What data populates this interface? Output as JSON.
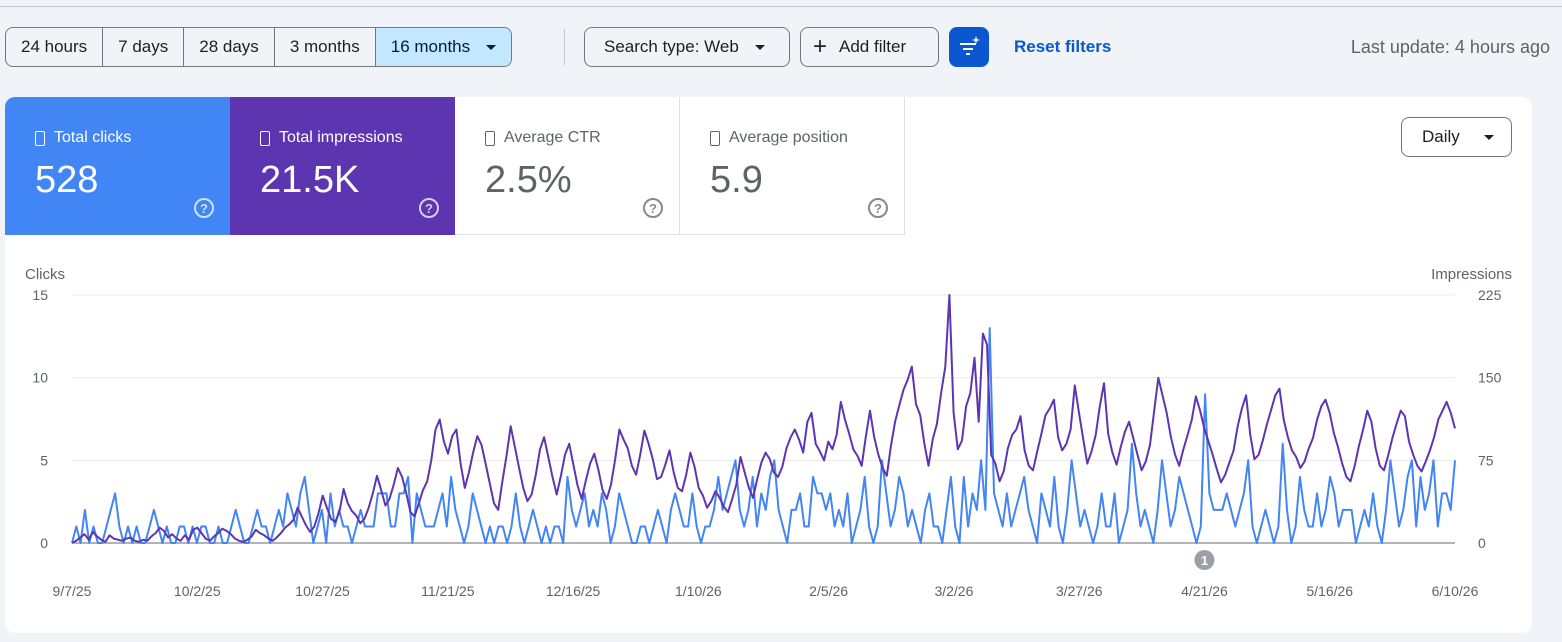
{
  "time_range": {
    "options": [
      "24 hours",
      "7 days",
      "28 days",
      "3 months",
      "16 months"
    ],
    "selected": "16 months"
  },
  "filters": {
    "search_type_label": "Search type: Web",
    "add_filter_label": "Add filter",
    "reset_label": "Reset filters"
  },
  "last_update": "Last update: 4 hours ago",
  "metrics": {
    "clicks": {
      "label": "Total clicks",
      "value": "528",
      "help": "?"
    },
    "impressions": {
      "label": "Total impressions",
      "value": "21.5K",
      "help": "?"
    },
    "ctr": {
      "label": "Average CTR",
      "value": "2.5%",
      "help": "?"
    },
    "position": {
      "label": "Average position",
      "value": "5.9",
      "help": "?"
    }
  },
  "granularity": "Daily",
  "colors": {
    "clicks": "#4285f4",
    "impressions": "#5e35b1",
    "accent": "#0b57d0",
    "selected_segment": "#c2e7ff"
  },
  "chart_data": {
    "type": "line",
    "x_start": "2025-09-07",
    "x_end": "2026-06-10",
    "xticks": [
      "9/7/25",
      "10/2/25",
      "10/27/25",
      "11/21/25",
      "12/16/25",
      "1/10/26",
      "2/5/26",
      "3/2/26",
      "3/27/26",
      "4/21/26",
      "5/16/26",
      "6/10/26"
    ],
    "ylabel_left": "Clicks",
    "ylabel_right": "Impressions",
    "ylim_left": [
      0,
      15
    ],
    "ylim_right": [
      0,
      225
    ],
    "yticks_left": [
      0,
      5,
      10,
      15
    ],
    "yticks_right": [
      0,
      75,
      150,
      225
    ],
    "annotation": {
      "date": "4/21/26",
      "label": "1"
    },
    "grid": true,
    "series": [
      {
        "name": "Clicks",
        "axis": "left",
        "values": [
          0,
          1,
          0,
          2,
          0,
          1,
          0,
          0,
          1,
          2,
          3,
          1,
          0,
          1,
          0,
          1,
          0,
          0,
          1,
          2,
          1,
          0,
          1,
          0,
          0,
          1,
          1,
          0,
          1,
          0,
          1,
          1,
          0,
          0,
          1,
          0,
          0,
          1,
          2,
          1,
          0,
          0,
          1,
          2,
          1,
          1,
          0,
          1,
          2,
          1,
          3,
          2,
          1,
          3,
          4,
          2,
          0,
          1,
          2,
          0,
          3,
          1,
          2,
          1,
          1,
          0,
          1,
          2,
          1,
          1,
          1,
          3,
          3,
          3,
          1,
          1,
          3,
          3,
          4,
          0,
          3,
          2,
          1,
          1,
          1,
          2,
          3,
          1,
          4,
          2,
          1,
          0,
          1,
          3,
          2,
          1,
          0,
          1,
          0,
          1,
          1,
          0,
          1,
          3,
          1,
          0,
          1,
          2,
          1,
          0,
          1,
          0,
          1,
          1,
          0,
          4,
          2,
          1,
          2,
          3,
          1,
          2,
          1,
          3,
          2,
          0,
          1,
          3,
          2,
          1,
          0,
          0,
          1,
          1,
          0,
          1,
          2,
          1,
          0,
          2,
          3,
          2,
          1,
          1,
          3,
          1,
          0,
          1,
          1,
          2,
          4,
          2,
          3,
          4,
          5,
          2,
          1,
          2,
          4,
          1,
          3,
          2,
          4,
          5,
          2,
          1,
          0,
          2,
          2,
          3,
          1,
          1,
          4,
          3,
          3,
          2,
          3,
          1,
          2,
          1,
          3,
          0,
          1,
          2,
          4,
          1,
          0,
          1,
          5,
          3,
          1,
          2,
          4,
          3,
          1,
          2,
          1,
          0,
          2,
          3,
          1,
          1,
          0,
          2,
          4,
          1,
          0,
          4,
          1,
          3,
          2,
          5,
          2,
          13,
          3,
          2,
          1,
          3,
          1,
          2,
          3,
          4,
          2,
          1,
          0,
          3,
          2,
          1,
          4,
          1,
          0,
          2,
          5,
          3,
          1,
          2,
          1,
          0,
          1,
          3,
          1,
          1,
          3,
          0,
          1,
          2,
          6,
          3,
          1,
          2,
          1,
          0,
          2,
          5,
          3,
          1,
          2,
          4,
          3,
          2,
          1,
          0,
          1,
          9,
          3,
          2,
          2,
          2,
          3,
          2,
          1,
          2,
          3,
          5,
          1,
          0,
          1,
          2,
          1,
          0,
          1,
          6,
          2,
          0,
          1,
          4,
          2,
          1,
          1,
          3,
          1,
          2,
          4,
          3,
          1,
          2,
          2,
          2,
          0,
          1,
          2,
          1,
          3,
          1,
          0,
          2,
          5,
          3,
          1,
          2,
          4,
          5,
          1,
          4,
          2,
          3,
          5,
          1,
          3,
          3,
          2,
          5
        ]
      },
      {
        "name": "Impressions",
        "axis": "right",
        "values": [
          0,
          2,
          5,
          8,
          3,
          10,
          6,
          3,
          1,
          7,
          4,
          3,
          2,
          4,
          5,
          2,
          1,
          3,
          2,
          6,
          9,
          14,
          11,
          5,
          8,
          4,
          2,
          7,
          3,
          12,
          14,
          9,
          4,
          2,
          6,
          9,
          13,
          11,
          8,
          4,
          2,
          1,
          3,
          6,
          12,
          9,
          7,
          4,
          2,
          5,
          9,
          14,
          17,
          21,
          32,
          24,
          16,
          10,
          15,
          27,
          43,
          32,
          22,
          19,
          28,
          49,
          36,
          29,
          25,
          18,
          22,
          32,
          45,
          61,
          48,
          34,
          40,
          53,
          68,
          60,
          45,
          28,
          24,
          36,
          48,
          56,
          75,
          103,
          112,
          92,
          81,
          97,
          103,
          72,
          50,
          64,
          82,
          97,
          89,
          72,
          54,
          36,
          30,
          56,
          79,
          106,
          87,
          68,
          50,
          38,
          44,
          62,
          85,
          96,
          78,
          60,
          44,
          61,
          80,
          90,
          71,
          52,
          40,
          57,
          72,
          81,
          66,
          48,
          40,
          53,
          76,
          103,
          94,
          86,
          70,
          62,
          80,
          102,
          90,
          76,
          58,
          60,
          71,
          84,
          64,
          50,
          47,
          62,
          82,
          69,
          50,
          43,
          32,
          38,
          47,
          41,
          33,
          28,
          40,
          53,
          78,
          64,
          50,
          41,
          58,
          73,
          82,
          76,
          64,
          60,
          69,
          86,
          96,
          103,
          94,
          82,
          110,
          118,
          90,
          83,
          75,
          92,
          85,
          98,
          128,
          112,
          99,
          85,
          79,
          70,
          97,
          120,
          96,
          80,
          68,
          61,
          88,
          110,
          125,
          139,
          148,
          160,
          126,
          116,
          90,
          70,
          94,
          108,
          136,
          160,
          225,
          118,
          85,
          93,
          124,
          136,
          168,
          110,
          190,
          180,
          80,
          72,
          56,
          65,
          86,
          98,
          103,
          115,
          84,
          70,
          66,
          83,
          99,
          116,
          122,
          130,
          96,
          84,
          90,
          103,
          143,
          118,
          95,
          72,
          83,
          98,
          124,
          145,
          99,
          82,
          71,
          87,
          101,
          110,
          95,
          80,
          66,
          74,
          89,
          120,
          150,
          134,
          118,
          96,
          80,
          70,
          85,
          98,
          112,
          133,
          120,
          104,
          92,
          80,
          67,
          55,
          62,
          73,
          84,
          106,
          122,
          134,
          98,
          76,
          80,
          93,
          108,
          121,
          134,
          140,
          112,
          96,
          84,
          78,
          68,
          74,
          86,
          95,
          112,
          124,
          130,
          118,
          100,
          87,
          72,
          60,
          56,
          70,
          88,
          103,
          120,
          110,
          86,
          70,
          66,
          79,
          95,
          108,
          120,
          115,
          92,
          80,
          70,
          65,
          74,
          84,
          96,
          112,
          120,
          128,
          118,
          104
        ]
      }
    ]
  }
}
